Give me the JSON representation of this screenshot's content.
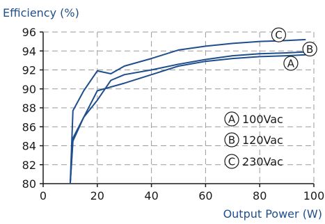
{
  "chart_data": {
    "type": "line",
    "title": "",
    "ylabel": "Efficiency (%)",
    "xlabel": "Output Power (W)",
    "xlim": [
      0,
      100
    ],
    "ylim": [
      80,
      96
    ],
    "xticks": [
      0,
      20,
      40,
      60,
      80,
      100
    ],
    "yticks": [
      80,
      82,
      84,
      86,
      88,
      90,
      92,
      94,
      96
    ],
    "grid": true,
    "legend_position": "center-right",
    "colors": {
      "series": "#1f4e8c",
      "text": "#1f4e8c",
      "grid": "#9a9a9a",
      "axis": "#1a1a1a"
    },
    "series": [
      {
        "marker": "A",
        "name": "100Vac",
        "points": [
          [
            10,
            80.0
          ],
          [
            11,
            84.5
          ],
          [
            15,
            87.0
          ],
          [
            20,
            89.8
          ],
          [
            25,
            90.2
          ],
          [
            30,
            90.6
          ],
          [
            40,
            91.5
          ],
          [
            50,
            92.4
          ],
          [
            60,
            92.9
          ],
          [
            70,
            93.2
          ],
          [
            80,
            93.4
          ],
          [
            90,
            93.5
          ],
          [
            97,
            93.6
          ]
        ]
      },
      {
        "marker": "B",
        "name": "120Vac",
        "points": [
          [
            10,
            80.0
          ],
          [
            11,
            84.8
          ],
          [
            15,
            87.0
          ],
          [
            20,
            88.8
          ],
          [
            25,
            90.9
          ],
          [
            30,
            91.5
          ],
          [
            40,
            92.0
          ],
          [
            50,
            92.6
          ],
          [
            60,
            93.1
          ],
          [
            70,
            93.5
          ],
          [
            80,
            93.7
          ],
          [
            90,
            93.8
          ],
          [
            97,
            93.9
          ]
        ]
      },
      {
        "marker": "C",
        "name": "230Vac",
        "points": [
          [
            10,
            80.0
          ],
          [
            11,
            87.7
          ],
          [
            15,
            89.8
          ],
          [
            20,
            91.9
          ],
          [
            25,
            91.6
          ],
          [
            30,
            92.4
          ],
          [
            40,
            93.2
          ],
          [
            50,
            94.1
          ],
          [
            60,
            94.5
          ],
          [
            70,
            94.8
          ],
          [
            80,
            95.0
          ],
          [
            90,
            95.1
          ],
          [
            97,
            95.2
          ]
        ]
      }
    ],
    "series_markers": [
      {
        "letter": "C",
        "x": 87,
        "y": 95.7
      },
      {
        "letter": "B",
        "x": 98.5,
        "y": 94.2
      },
      {
        "letter": "A",
        "x": 91.5,
        "y": 92.7
      }
    ]
  }
}
